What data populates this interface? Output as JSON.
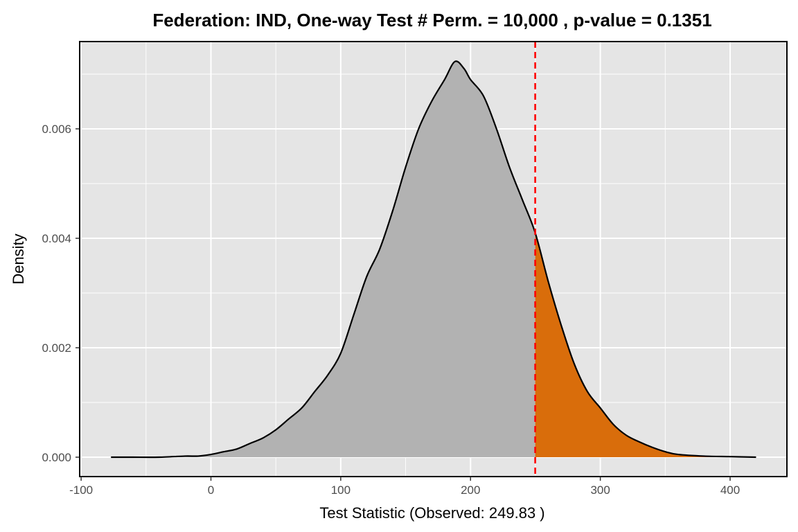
{
  "chart_data": {
    "type": "area",
    "title": "Federation: IND, One-way Test # Perm. = 10,000 , p-value = 0.1351",
    "xlabel": "Test Statistic (Observed: 249.83 )",
    "ylabel": "Density",
    "xlim": [
      -100,
      420
    ],
    "ylim": [
      0,
      0.0074
    ],
    "x_ticks": [
      "-100",
      "0",
      "100",
      "200",
      "300",
      "400"
    ],
    "y_ticks": [
      "0.000",
      "0.002",
      "0.004",
      "0.006"
    ],
    "grid": true,
    "legend": "none",
    "observed": 249.83,
    "series": [
      {
        "x": [
          -77,
          -60,
          -40,
          -20,
          -10,
          0,
          10,
          20,
          30,
          40,
          50,
          60,
          70,
          80,
          90,
          100,
          110,
          120,
          130,
          140,
          150,
          160,
          170,
          180,
          188,
          195,
          200,
          210,
          220,
          230,
          240,
          249.83,
          260,
          270,
          280,
          290,
          300,
          310,
          320,
          330,
          340,
          350,
          360,
          380,
          400,
          420
        ],
        "y": [
          0.0,
          0.0,
          0.0,
          2e-05,
          2e-05,
          5e-05,
          0.0001,
          0.00015,
          0.00025,
          0.00035,
          0.0005,
          0.0007,
          0.0009,
          0.0012,
          0.0015,
          0.0019,
          0.0026,
          0.0033,
          0.0038,
          0.0045,
          0.0053,
          0.006,
          0.0065,
          0.0069,
          0.00723,
          0.0071,
          0.0069,
          0.0066,
          0.006,
          0.0053,
          0.0047,
          0.0041,
          0.0032,
          0.0024,
          0.0017,
          0.0012,
          0.0009,
          0.0006,
          0.0004,
          0.00028,
          0.00018,
          0.0001,
          5e-05,
          2e-05,
          1e-05,
          0.0
        ]
      }
    ],
    "colors": {
      "panel_background": "#e5e5e5",
      "grid": "#ffffff",
      "density_fill": "#b2b2b2",
      "tail_fill": "#d96d0b",
      "observed_line": "#ff0000"
    }
  }
}
